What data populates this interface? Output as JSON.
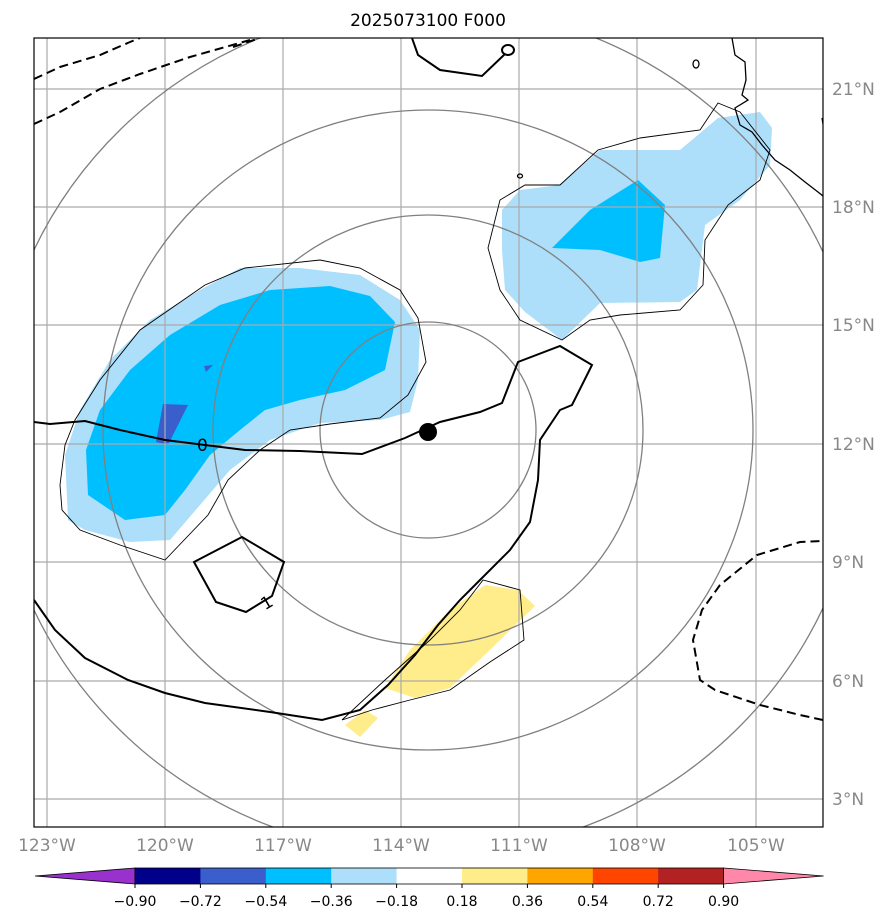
{
  "title": "2025073100 F000",
  "map": {
    "lon_labels": [
      "123°W",
      "120°W",
      "117°W",
      "114°W",
      "111°W",
      "108°W",
      "105°W"
    ],
    "lat_labels": [
      "21°N",
      "18°N",
      "15°N",
      "12°N",
      "9°N",
      "6°N",
      "3°N"
    ],
    "contour_labels": [
      "0",
      "1"
    ],
    "center_marker": "storm-center"
  },
  "colorbar": {
    "ticks": [
      "−0.90",
      "−0.72",
      "−0.54",
      "−0.36",
      "−0.18",
      "0.18",
      "0.36",
      "0.54",
      "0.72",
      "0.90"
    ],
    "colors": [
      "#9932CC",
      "#00008B",
      "#3A5ECC",
      "#00BFFF",
      "#ADDFFA",
      "#FFFFFF",
      "#FFEC8B",
      "#FFA500",
      "#FF4500",
      "#B22222",
      "#FF88AA"
    ],
    "extend": "both"
  },
  "colors": {
    "light_blue_fill": "#ADDFFA",
    "blue_fill": "#00BFFF",
    "dark_blue_fill": "#3A5ECC",
    "yellow_fill": "#FFEC8B",
    "grid": "#aaaaaa",
    "range_rings": "#808080"
  }
}
